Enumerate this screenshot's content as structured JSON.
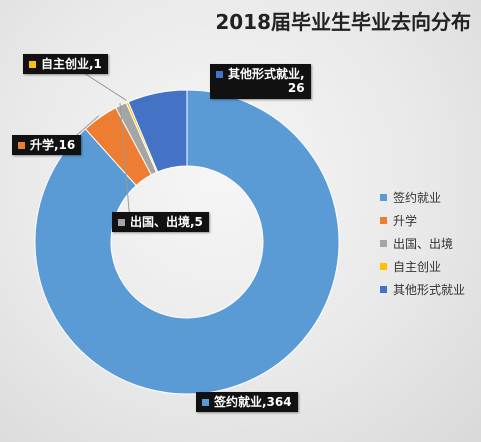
{
  "chart_data": {
    "type": "pie",
    "title": "2018届毕业生毕业去向分布",
    "donut": true,
    "categories": [
      "签约就业",
      "升学",
      "出国、出境",
      "自主创业",
      "其他形式就业"
    ],
    "values": [
      364,
      16,
      5,
      1,
      26
    ],
    "colors": [
      "#5b9bd5",
      "#ed7d31",
      "#a5a5a5",
      "#ffc000",
      "#4472c4"
    ],
    "data_labels": [
      "签约就业,364",
      "升学,16",
      "出国、出境,5",
      "自主创业,1",
      "其他形式就业,26"
    ],
    "legend": {
      "placement": "right",
      "entries": [
        "签约就业",
        "升学",
        "出国、出境",
        "自主创业",
        "其他形式就业"
      ]
    }
  }
}
